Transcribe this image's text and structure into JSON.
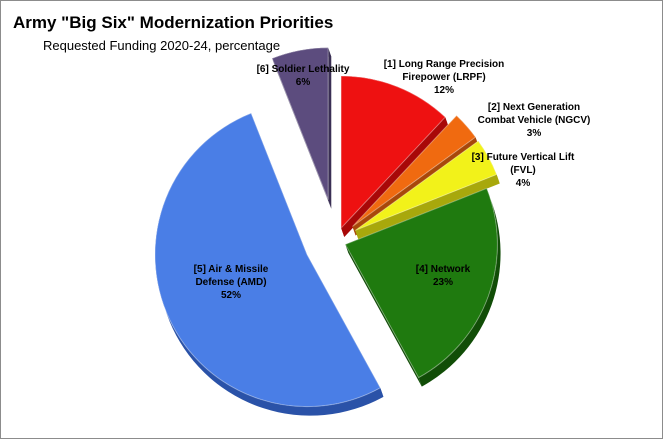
{
  "chart_data": {
    "type": "pie",
    "title": "Army \"Big Six\" Modernization Priorities",
    "subtitle": "Requested Funding 2020-24, percentage",
    "exploded": true,
    "style": "3d",
    "slices": [
      {
        "id": 1,
        "label_lines": [
          "[1] Long Range Precision",
          "Firepower (LRPF)",
          "12%"
        ],
        "value": 12,
        "color": "#ee1111",
        "side": "#a80808"
      },
      {
        "id": 2,
        "label_lines": [
          "[2] Next Generation",
          "Combat Vehicle (NGCV)",
          "3%"
        ],
        "value": 3,
        "color": "#f06a10",
        "side": "#a8480a"
      },
      {
        "id": 3,
        "label_lines": [
          "[3] Future Vertical Lift",
          "(FVL)",
          "4%"
        ],
        "value": 4,
        "color": "#f2f21a",
        "side": "#a8a80c"
      },
      {
        "id": 4,
        "label_lines": [
          "[4] Network",
          "23%"
        ],
        "value": 23,
        "color": "#1f7a0f",
        "side": "#114d07"
      },
      {
        "id": 5,
        "label_lines": [
          "[5] Air & Missile",
          "Defense (AMD)",
          "52%"
        ],
        "value": 52,
        "color": "#4a7ee6",
        "side": "#2a52a8"
      },
      {
        "id": 6,
        "label_lines": [
          "[6] Soldier Lethality",
          "6%"
        ],
        "value": 6,
        "color": "#5c4c7e",
        "side": "#3a2f54"
      }
    ]
  }
}
